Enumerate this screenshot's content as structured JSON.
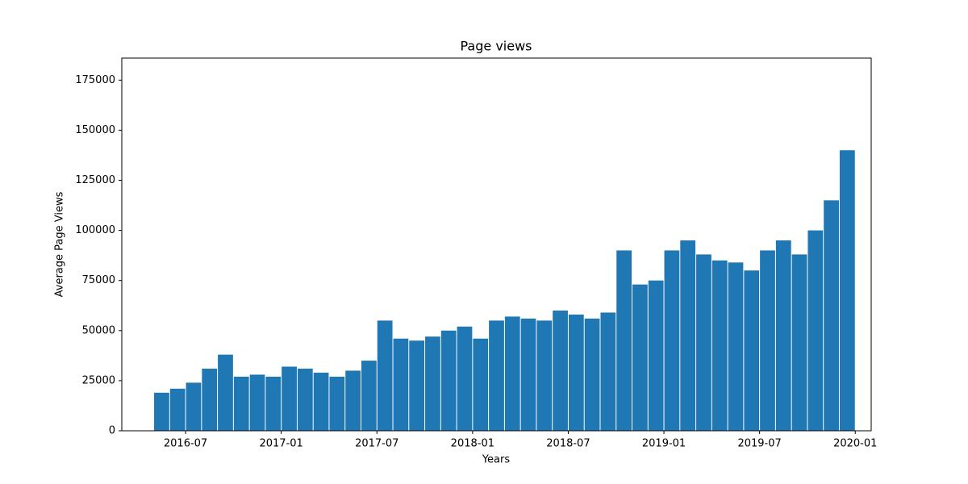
{
  "chart_data": {
    "type": "bar",
    "title": "Page views",
    "x_label": "Years",
    "y_label": "Average Page Views",
    "color": "#1f77b4",
    "x": [
      "2016-05",
      "2016-06",
      "2016-07",
      "2016-08",
      "2016-09",
      "2016-10",
      "2016-11",
      "2016-12",
      "2017-01",
      "2017-02",
      "2017-03",
      "2017-04",
      "2017-05",
      "2017-06",
      "2017-07",
      "2017-08",
      "2017-09",
      "2017-10",
      "2017-11",
      "2017-12",
      "2018-01",
      "2018-02",
      "2018-03",
      "2018-04",
      "2018-05",
      "2018-06",
      "2018-07",
      "2018-08",
      "2018-09",
      "2018-10",
      "2018-11",
      "2018-12",
      "2019-01",
      "2019-02",
      "2019-03",
      "2019-04",
      "2019-05",
      "2019-06",
      "2019-07",
      "2019-08",
      "2019-09",
      "2019-10",
      "2019-11",
      "2019-12"
    ],
    "values": [
      19000,
      21000,
      24000,
      31000,
      38000,
      27000,
      28000,
      27000,
      32000,
      31000,
      29000,
      27000,
      30000,
      35000,
      55000,
      46000,
      45000,
      47000,
      50000,
      52000,
      46000,
      55000,
      57000,
      56000,
      55000,
      60000,
      58000,
      56000,
      59000,
      90000,
      73000,
      75000,
      90000,
      95000,
      88000,
      85000,
      84000,
      80000,
      90000,
      95000,
      88000,
      100000,
      115000,
      140000
    ],
    "xlim": [
      "2016-03",
      "2020-02"
    ],
    "xticks": [
      "2016-07",
      "2017-01",
      "2017-07",
      "2018-01",
      "2018-07",
      "2019-01",
      "2019-07",
      "2020-01"
    ],
    "ylim": [
      0,
      186000
    ],
    "yticks": [
      0,
      25000,
      50000,
      75000,
      100000,
      125000,
      150000,
      175000
    ]
  }
}
